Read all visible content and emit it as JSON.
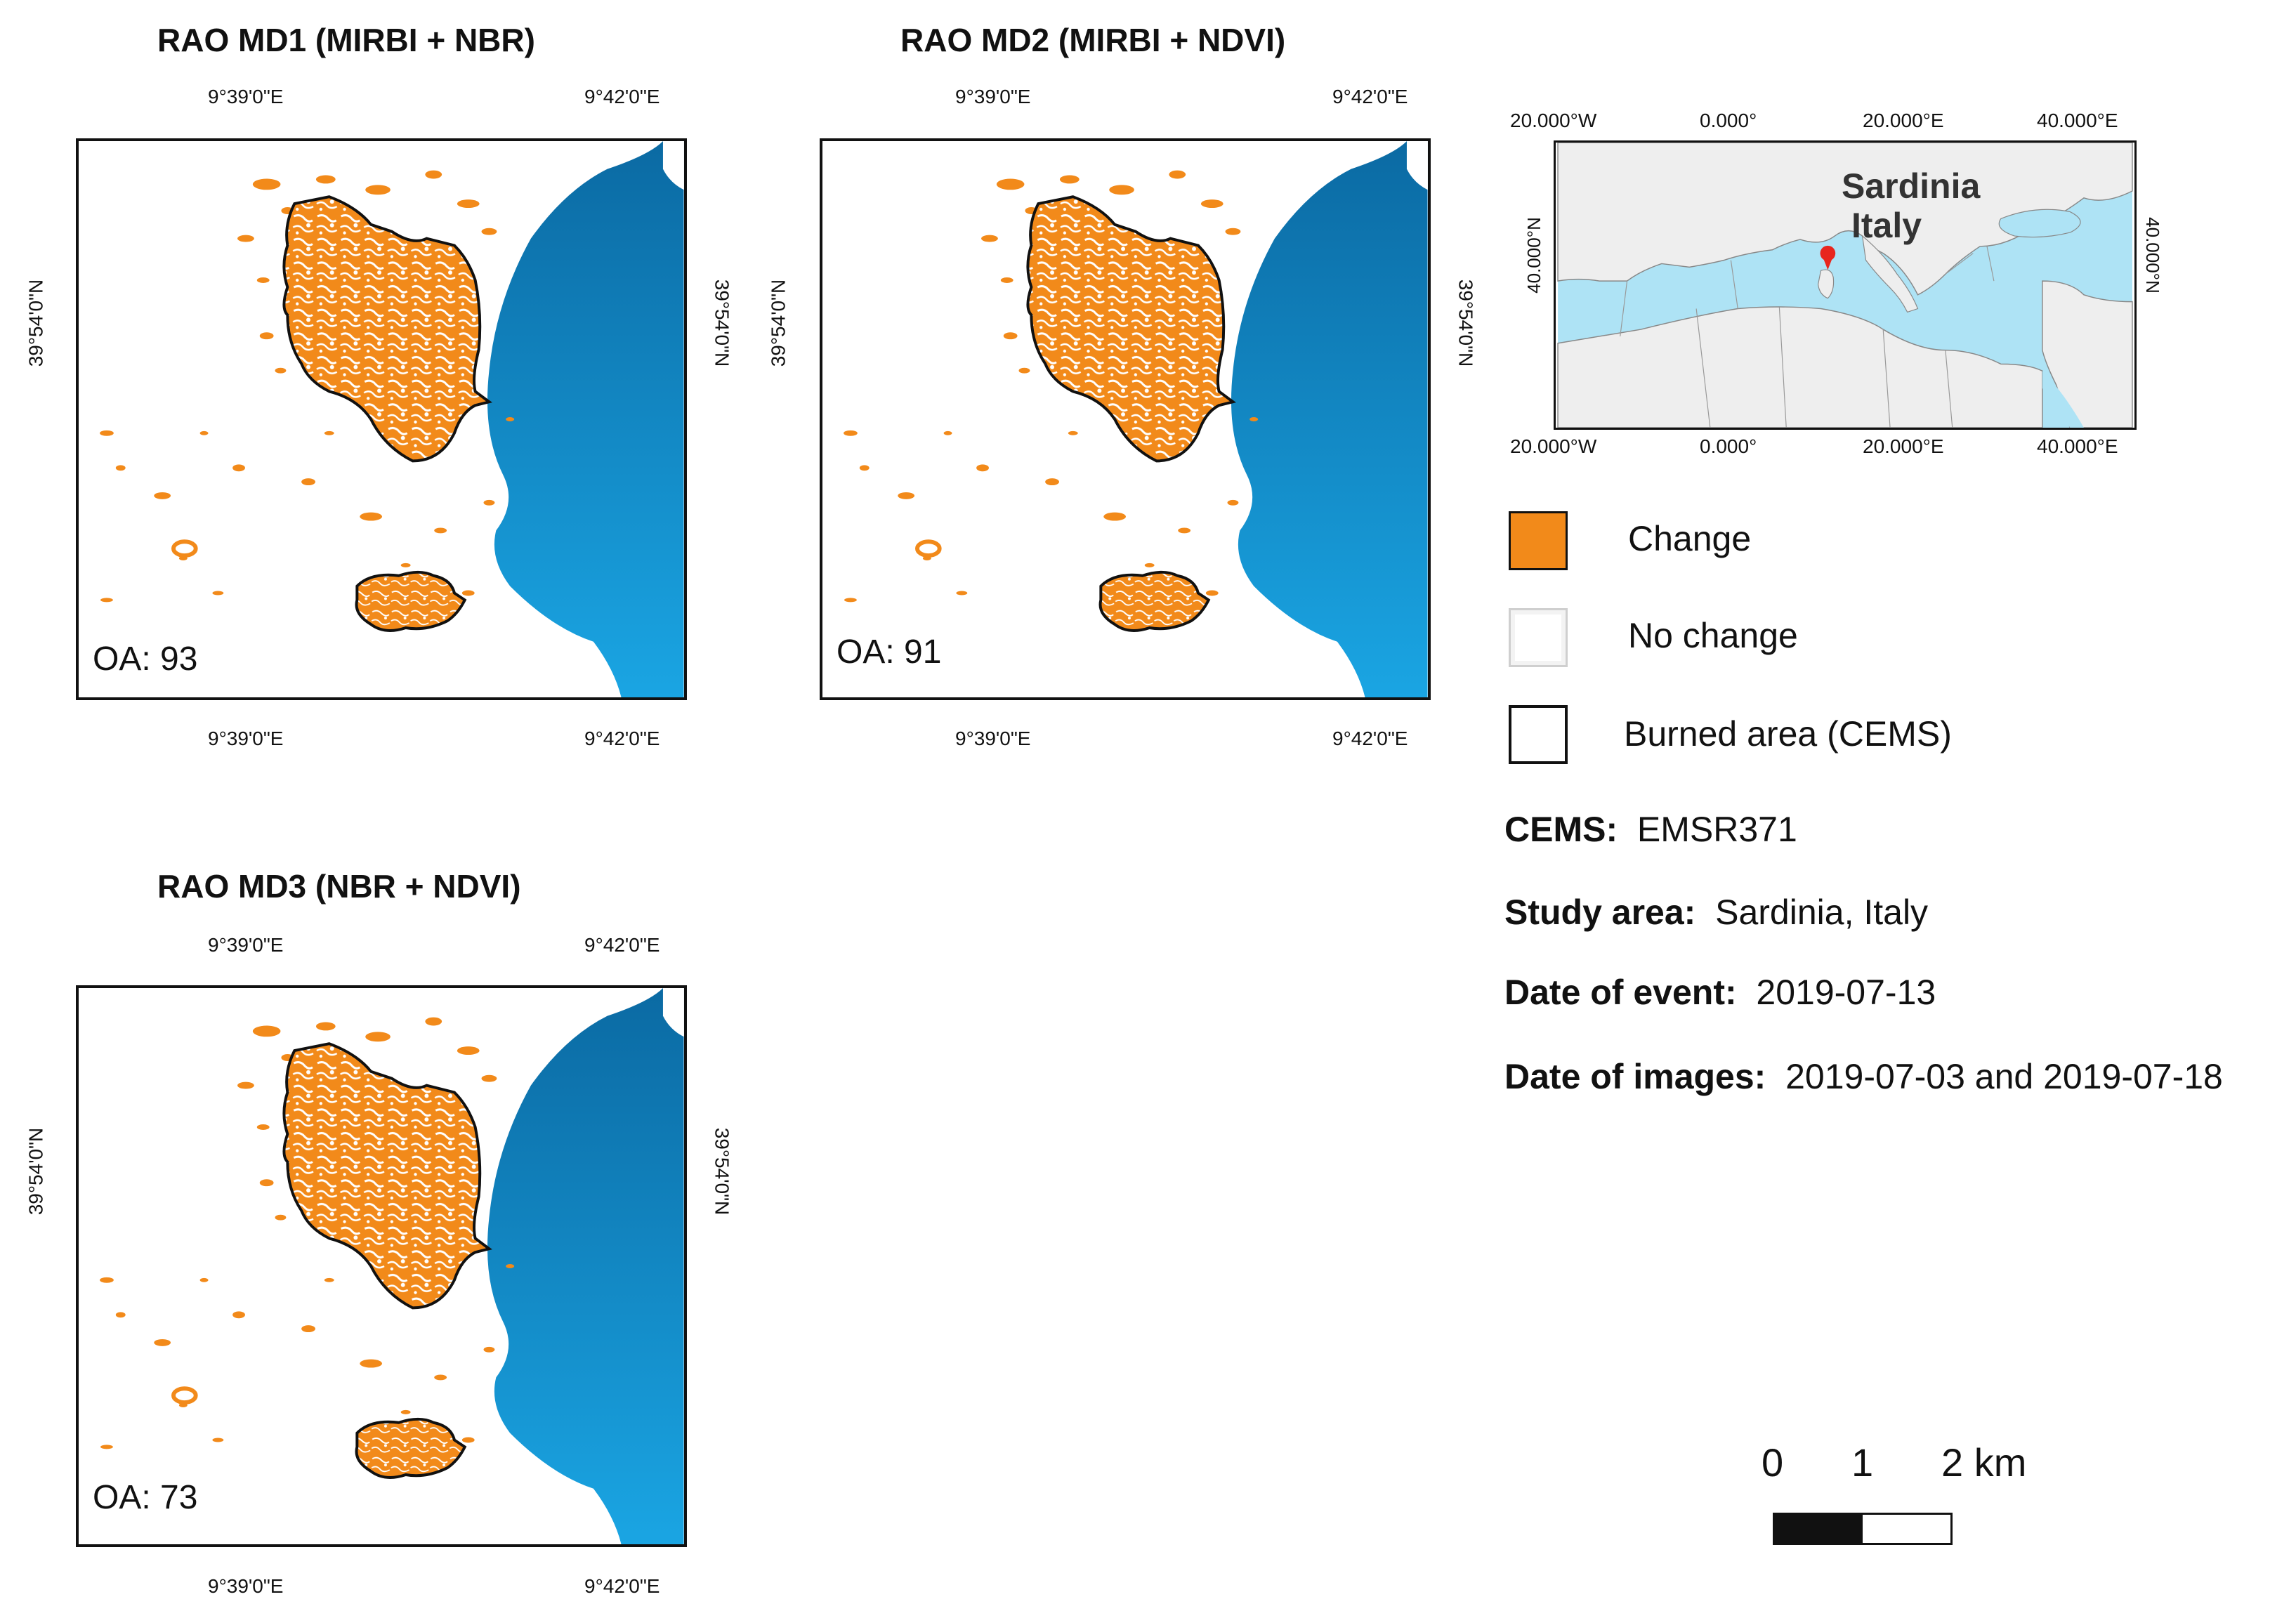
{
  "panels": [
    {
      "title": "RAO MD1 (MIRBI + NBR)",
      "oa_label": "OA: 93",
      "lon_labels": [
        "9°39'0\"E",
        "9°42'0\"E"
      ],
      "lat_label": "39°54'0\"N"
    },
    {
      "title": "RAO MD2 (MIRBI + NDVI)",
      "oa_label": "OA: 91",
      "lon_labels": [
        "9°39'0\"E",
        "9°42'0\"E"
      ],
      "lat_label": "39°54'0\"N"
    },
    {
      "title": "RAO MD3 (NBR + NDVI)",
      "oa_label": "OA: 73",
      "lon_labels": [
        "9°39'0\"E",
        "9°42'0\"E"
      ],
      "lat_label": "39°54'0\"N"
    }
  ],
  "inset": {
    "lon_labels": [
      "20.000°W",
      "0.000°",
      "20.000°E",
      "40.000°E"
    ],
    "lat_label": "40.000°N",
    "place_1": "Sardinia",
    "place_2": "Italy"
  },
  "legend": {
    "change_label": "Change",
    "no_change_label": "No change",
    "burned_label": "Burned area (CEMS)"
  },
  "info": {
    "cems_key": "CEMS:",
    "cems_value": "EMSR371",
    "study_key": "Study area:",
    "study_value": "Sardinia, Italy",
    "event_key": "Date of event:",
    "event_value": "2019-07-13",
    "images_key": "Date of images:",
    "images_value": "2019-07-03 and 2019-07-18"
  },
  "scale_bar": {
    "label_0": "0",
    "label_1": "1",
    "label_2": "2 km"
  },
  "colors": {
    "change": "#f28a1a",
    "sea_top": "#0a6ea8",
    "sea_bottom": "#1aa2e0",
    "inset_sea": "#aee3f5",
    "inset_land": "#eeeeee",
    "marker": "#e8261e"
  }
}
